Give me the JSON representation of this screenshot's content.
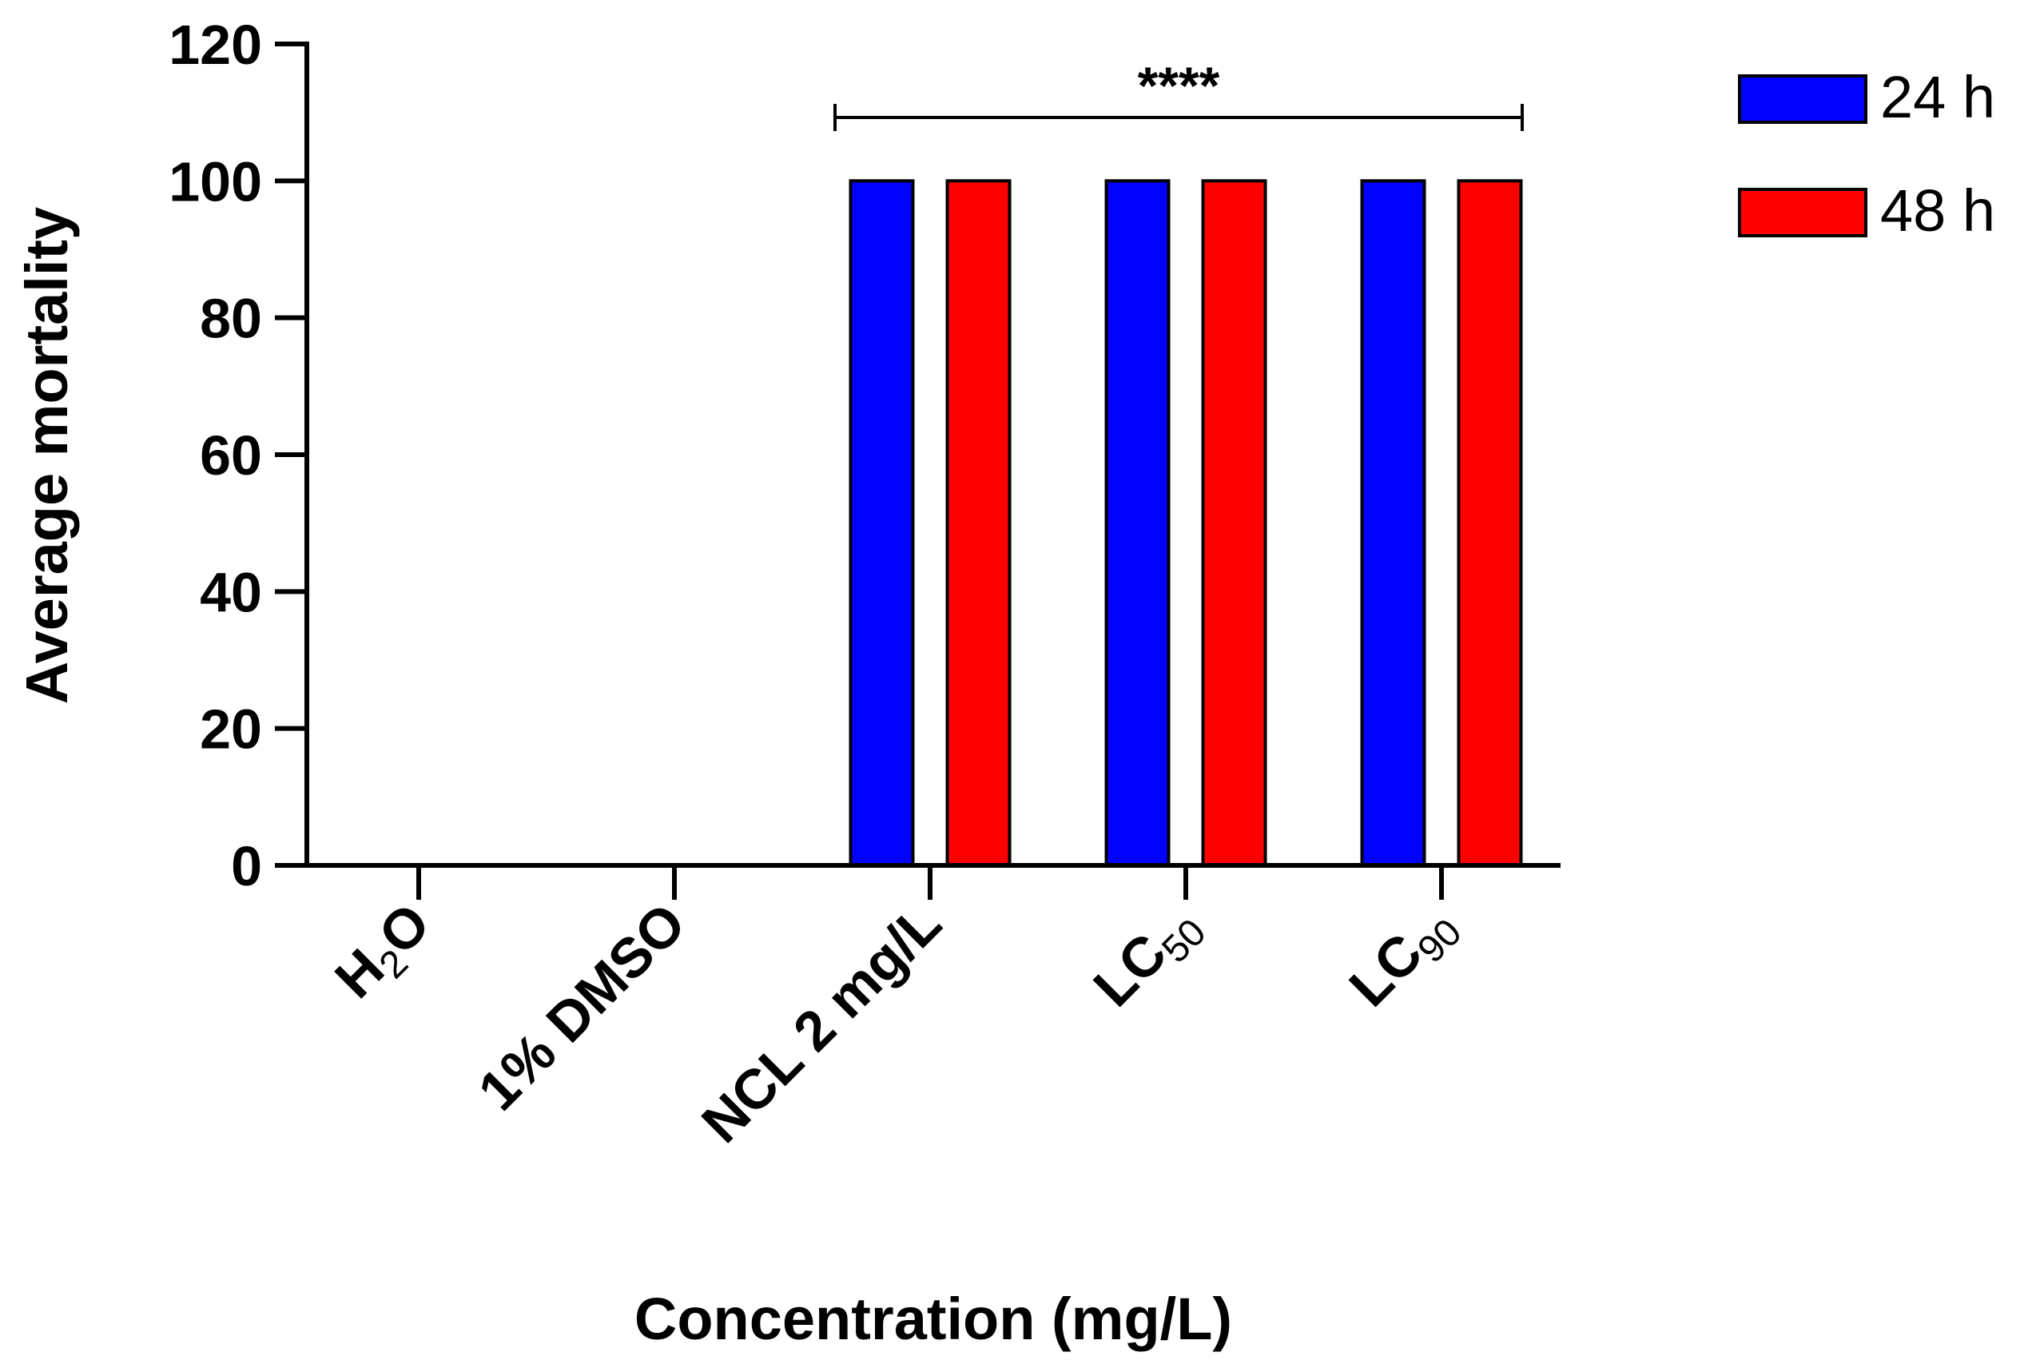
{
  "chart_data": {
    "type": "bar",
    "title": "",
    "xlabel": "Concentration (mg/L)",
    "ylabel": "Average mortality",
    "ylim": [
      0,
      120
    ],
    "yticks": [
      0,
      20,
      40,
      60,
      80,
      100,
      120
    ],
    "ytick_labels": [
      "0",
      "20",
      "40",
      "60",
      "80",
      "100",
      "120"
    ],
    "categories": [
      {
        "main": "H",
        "sub": "2",
        "tail": "O"
      },
      {
        "main": "1% DMSO",
        "sub": "",
        "tail": ""
      },
      {
        "main": "NCL 2 mg/L",
        "sub": "",
        "tail": ""
      },
      {
        "main": "LC",
        "sub": "50",
        "tail": ""
      },
      {
        "main": "LC",
        "sub": "90",
        "tail": ""
      }
    ],
    "series": [
      {
        "name": "24 h",
        "color": "#0000ff",
        "values": [
          0,
          0,
          100,
          100,
          100
        ]
      },
      {
        "name": "48 h",
        "color": "#ff0000",
        "values": [
          0,
          0,
          100,
          100,
          100
        ]
      }
    ],
    "significance": {
      "label": "****",
      "from_category": 2,
      "to_category": 4
    },
    "legend_position": "top-right"
  }
}
